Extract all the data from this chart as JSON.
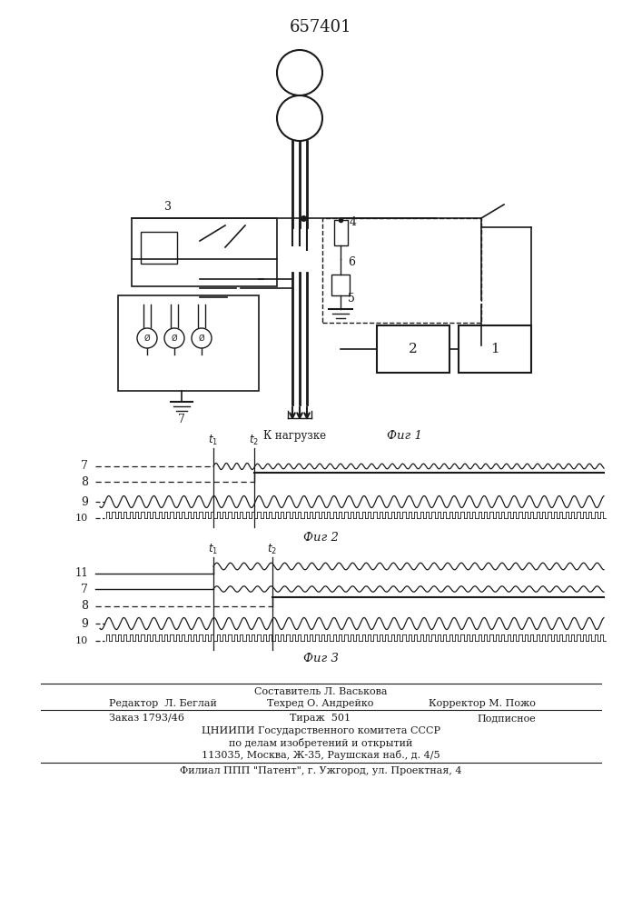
{
  "title": "657401",
  "fig1_caption": "Фиг 1",
  "fig2_caption": "Фиг 2",
  "fig3_caption": "Фиг 3",
  "load_label": "К нагрузке",
  "footer_line1": "Составитель Л. Васькова",
  "footer_line2l": "Редактор  Л. Беглай",
  "footer_line2m": "Техред О. Андрейко",
  "footer_line2r": "Корректор М. Пожо",
  "footer_line3l": "Заказ 1793/46",
  "footer_line3m": "Тираж  501",
  "footer_line3r": "Подписное",
  "footer_line4": "ЦНИИПИ Государственного комитета СССР",
  "footer_line5": "по делам изобретений и открытий",
  "footer_line6": "113035, Москва, Ж-35, Раушская наб., д. 4/5",
  "footer_line7": "Филиал ППП \"Патент\", г. Ужгород, ул. Проектная, 4",
  "bg_color": "#ffffff",
  "line_color": "#1a1a1a"
}
